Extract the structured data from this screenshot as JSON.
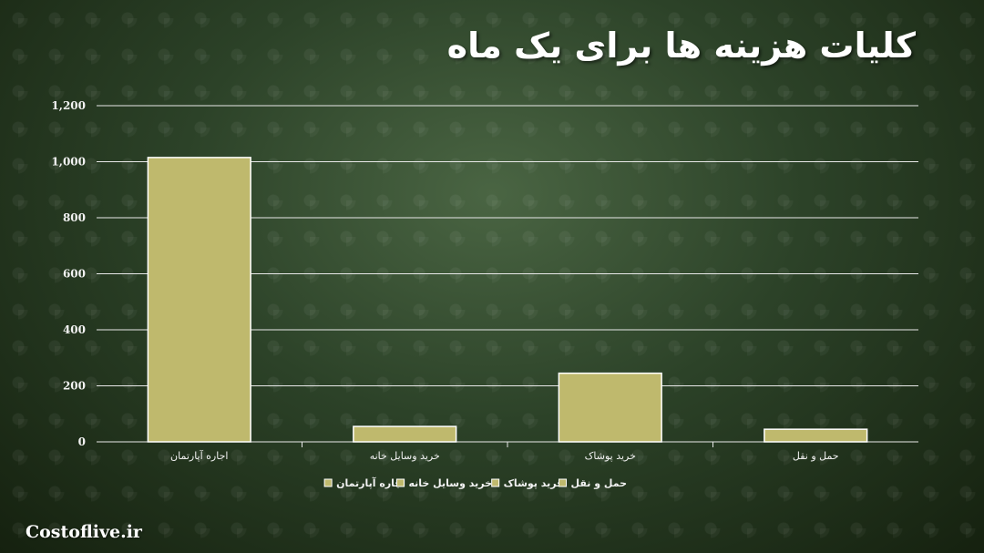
{
  "title": "کلیات هزینه ها برای یک ماه",
  "brand": "Costoflive.ir",
  "chart_data": {
    "type": "bar",
    "categories": [
      "اجاره آپارتمان",
      "خرید وسایل خانه",
      "خرید پوشاک",
      "حمل و نقل"
    ],
    "values": [
      1015,
      55,
      245,
      45
    ],
    "ylim": [
      0,
      1200
    ],
    "yticks": [
      0,
      200,
      400,
      600,
      800,
      1000,
      1200
    ],
    "ytick_labels": [
      "0",
      "200",
      "400",
      "600",
      "800",
      "1,000",
      "1,200"
    ],
    "legend": [
      "اجاره آپارتمان",
      "خرید وسایل خانه",
      "خرید پوشاک",
      "حمل و نقل"
    ],
    "legend_position": "bottom",
    "grid": true,
    "bar_color": "#bfb96d",
    "bar_edge_color": "#ffffff"
  }
}
